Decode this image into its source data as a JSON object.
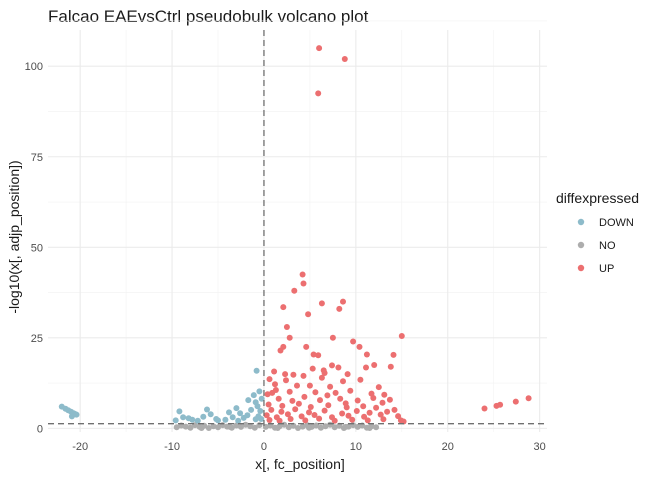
{
  "chart_data": {
    "type": "scatter",
    "title": "Falcao EAEvsCtrl pseudobulk volcano plot",
    "xlabel": "x[, fc_position]",
    "ylabel": "-log10(x[, adjp_position])",
    "xlim": [
      -23.5,
      30.8
    ],
    "ylim": [
      -1,
      110
    ],
    "xticks": [
      -20,
      -10,
      0,
      10,
      20,
      30
    ],
    "yticks": [
      0,
      25,
      50,
      75,
      100
    ],
    "vline": 0,
    "hline": 1.3,
    "grid": true,
    "legend": {
      "title": "diffexpressed",
      "placement": "right",
      "entries": [
        {
          "label": "DOWN",
          "color": "#8DBBCA"
        },
        {
          "label": "NO",
          "color": "#ADADAD"
        },
        {
          "label": "UP",
          "color": "#EC6F70"
        }
      ]
    },
    "series": [
      {
        "name": "DOWN",
        "color": "#8DBBCA",
        "points": [
          [
            -22,
            6
          ],
          [
            -21.6,
            5.4
          ],
          [
            -21.3,
            5
          ],
          [
            -21,
            4.6
          ],
          [
            -20.7,
            4.2
          ],
          [
            -20.4,
            3.8
          ],
          [
            -20.9,
            3.3
          ],
          [
            -20.5,
            3.9
          ],
          [
            -9.6,
            2.2
          ],
          [
            -9.2,
            4.7
          ],
          [
            -8.8,
            3.1
          ],
          [
            -8.2,
            2.8
          ],
          [
            -7.8,
            2.4
          ],
          [
            -7.2,
            2.1
          ],
          [
            -6.6,
            3.2
          ],
          [
            -6.2,
            5.2
          ],
          [
            -5.8,
            3.9
          ],
          [
            -5.2,
            2.6
          ],
          [
            -4.2,
            2.4
          ],
          [
            -3.8,
            4.4
          ],
          [
            -3.4,
            3.1
          ],
          [
            -3.0,
            5.6
          ],
          [
            -2.6,
            4.2
          ],
          [
            -2.2,
            2.9
          ],
          [
            -1.8,
            3.6
          ],
          [
            -1.4,
            5.1
          ],
          [
            -1.1,
            9.2
          ],
          [
            -0.9,
            7.2
          ],
          [
            -0.7,
            6.1
          ],
          [
            -0.5,
            10.2
          ],
          [
            -0.4,
            4.8
          ],
          [
            -0.3,
            2.6
          ],
          [
            -1.7,
            7.8
          ],
          [
            -0.8,
            15.9
          ],
          [
            -0.25,
            8.2
          ],
          [
            -0.6,
            3.3
          ],
          [
            -2.8,
            2.1
          ],
          [
            -5.0,
            2.2
          ],
          [
            -0.9,
            2.5
          ]
        ]
      },
      {
        "name": "NO",
        "color": "#ADADAD",
        "points": [
          [
            -9.5,
            0.3
          ],
          [
            -9.0,
            0.8
          ],
          [
            -8.5,
            0.5
          ],
          [
            -8.0,
            0.2
          ],
          [
            -7.5,
            0.9
          ],
          [
            -7.0,
            0.4
          ],
          [
            -6.5,
            0.7
          ],
          [
            -6.0,
            0.1
          ],
          [
            -5.5,
            0.6
          ],
          [
            -5.0,
            0.3
          ],
          [
            -4.5,
            0.9
          ],
          [
            -4.0,
            0.5
          ],
          [
            -3.5,
            0.2
          ],
          [
            -3.0,
            0.8
          ],
          [
            -2.5,
            0.4
          ],
          [
            -2.0,
            1.0
          ],
          [
            -1.5,
            0.6
          ],
          [
            -1.0,
            0.2
          ],
          [
            -0.5,
            0.9
          ],
          [
            0.2,
            0.4
          ],
          [
            0.7,
            0.8
          ],
          [
            1.2,
            0.2
          ],
          [
            1.7,
            0.6
          ],
          [
            2.2,
            1.0
          ],
          [
            2.7,
            0.3
          ],
          [
            3.2,
            0.7
          ],
          [
            3.7,
            0.1
          ],
          [
            4.2,
            0.5
          ],
          [
            4.7,
            0.9
          ],
          [
            5.2,
            0.4
          ],
          [
            5.7,
            0.8
          ],
          [
            6.2,
            0.2
          ],
          [
            6.7,
            0.6
          ],
          [
            7.2,
            1.0
          ],
          [
            7.7,
            0.3
          ],
          [
            8.2,
            0.7
          ],
          [
            8.7,
            0.1
          ],
          [
            9.2,
            0.5
          ],
          [
            9.7,
            0.9
          ],
          [
            10.2,
            0.4
          ],
          [
            10.7,
            0.8
          ],
          [
            11.2,
            0.2
          ],
          [
            11.7,
            0.6
          ],
          [
            12.2,
            0.3
          ],
          [
            -6.8,
            0.1
          ],
          [
            -3.7,
            0.4
          ],
          [
            1.5,
            0.1
          ],
          [
            4.9,
            0.2
          ],
          [
            8.9,
            0.4
          ],
          [
            11.5,
            0.1
          ]
        ]
      },
      {
        "name": "UP",
        "color": "#EC6F70",
        "points": [
          [
            6,
            105
          ],
          [
            8.8,
            102
          ],
          [
            5.9,
            92.5
          ],
          [
            4.2,
            42.5
          ],
          [
            4.3,
            40
          ],
          [
            3.3,
            38
          ],
          [
            8.6,
            35
          ],
          [
            6.3,
            34.5
          ],
          [
            2.1,
            33.5
          ],
          [
            8.2,
            33
          ],
          [
            4.8,
            31.5
          ],
          [
            2.5,
            28
          ],
          [
            15,
            25.5
          ],
          [
            2.8,
            25
          ],
          [
            7.5,
            25
          ],
          [
            9.7,
            24
          ],
          [
            2.1,
            22.5
          ],
          [
            4.6,
            22.5
          ],
          [
            10.4,
            22.5
          ],
          [
            1.8,
            21.5
          ],
          [
            11.2,
            20.4
          ],
          [
            5.9,
            20.2
          ],
          [
            5.4,
            20.4
          ],
          [
            14.1,
            20.3
          ],
          [
            13.8,
            17
          ],
          [
            12,
            17.5
          ],
          [
            5.3,
            16.5
          ],
          [
            6.5,
            16
          ],
          [
            8.1,
            16.8
          ],
          [
            11.1,
            16.8
          ],
          [
            7.4,
            17.4
          ],
          [
            3.2,
            14.8
          ],
          [
            4.3,
            14.5
          ],
          [
            6.6,
            15.3
          ],
          [
            9.1,
            15
          ],
          [
            2.3,
            15
          ],
          [
            1.1,
            15.7
          ],
          [
            0.6,
            13.6
          ],
          [
            2.4,
            13.3
          ],
          [
            8.6,
            13
          ],
          [
            10.5,
            13.4
          ],
          [
            6.3,
            14
          ],
          [
            5,
            11.8
          ],
          [
            7.2,
            11.5
          ],
          [
            3.6,
            11.8
          ],
          [
            12.5,
            11.4
          ],
          [
            0.4,
            9.4
          ],
          [
            0.9,
            9.8
          ],
          [
            1.3,
            10.6
          ],
          [
            2.8,
            10.1
          ],
          [
            5.6,
            10
          ],
          [
            7.8,
            9.8
          ],
          [
            9.4,
            10.4
          ],
          [
            11.7,
            9.6
          ],
          [
            13.1,
            9.3
          ],
          [
            1.6,
            8.2
          ],
          [
            3.1,
            7.6
          ],
          [
            4.4,
            8.7
          ],
          [
            6.1,
            7.8
          ],
          [
            8.3,
            8.2
          ],
          [
            10.2,
            7.7
          ],
          [
            11.9,
            8.4
          ],
          [
            12.9,
            7.1
          ],
          [
            0.5,
            6.6
          ],
          [
            2,
            6.2
          ],
          [
            3.8,
            6.8
          ],
          [
            5.1,
            5.9
          ],
          [
            7,
            6.4
          ],
          [
            9,
            5.8
          ],
          [
            10.8,
            6.1
          ],
          [
            12.2,
            5.7
          ],
          [
            0.8,
            5.1
          ],
          [
            1.9,
            4.6
          ],
          [
            3.4,
            5.3
          ],
          [
            4.9,
            4.4
          ],
          [
            6.6,
            4.9
          ],
          [
            8.5,
            4.1
          ],
          [
            10.1,
            4.8
          ],
          [
            11.5,
            4.3
          ],
          [
            13.4,
            4.6
          ],
          [
            0.3,
            3.6
          ],
          [
            1.4,
            3.1
          ],
          [
            2.6,
            3.9
          ],
          [
            4.1,
            3.3
          ],
          [
            5.5,
            3.7
          ],
          [
            7.4,
            3.1
          ],
          [
            9.2,
            3.5
          ],
          [
            10.9,
            3.2
          ],
          [
            12.7,
            3.8
          ],
          [
            14.6,
            3.4
          ],
          [
            0.6,
            2.3
          ],
          [
            1.7,
            2.1
          ],
          [
            2.9,
            2.6
          ],
          [
            4.5,
            2.2
          ],
          [
            6,
            2.7
          ],
          [
            7.7,
            2.1
          ],
          [
            9.6,
            2.4
          ],
          [
            11.3,
            2.2
          ],
          [
            13,
            2.5
          ],
          [
            14.9,
            2.2
          ],
          [
            15.2,
            1.9
          ],
          [
            14.2,
            5.1
          ],
          [
            13.7,
            7.9
          ],
          [
            1.2,
            12.2
          ],
          [
            8.9,
            6.9
          ],
          [
            6.9,
            9.1
          ],
          [
            24,
            5.5
          ],
          [
            25.3,
            6.2
          ],
          [
            25.7,
            6.5
          ],
          [
            27.4,
            7.4
          ],
          [
            28.8,
            8.3
          ]
        ]
      }
    ]
  }
}
